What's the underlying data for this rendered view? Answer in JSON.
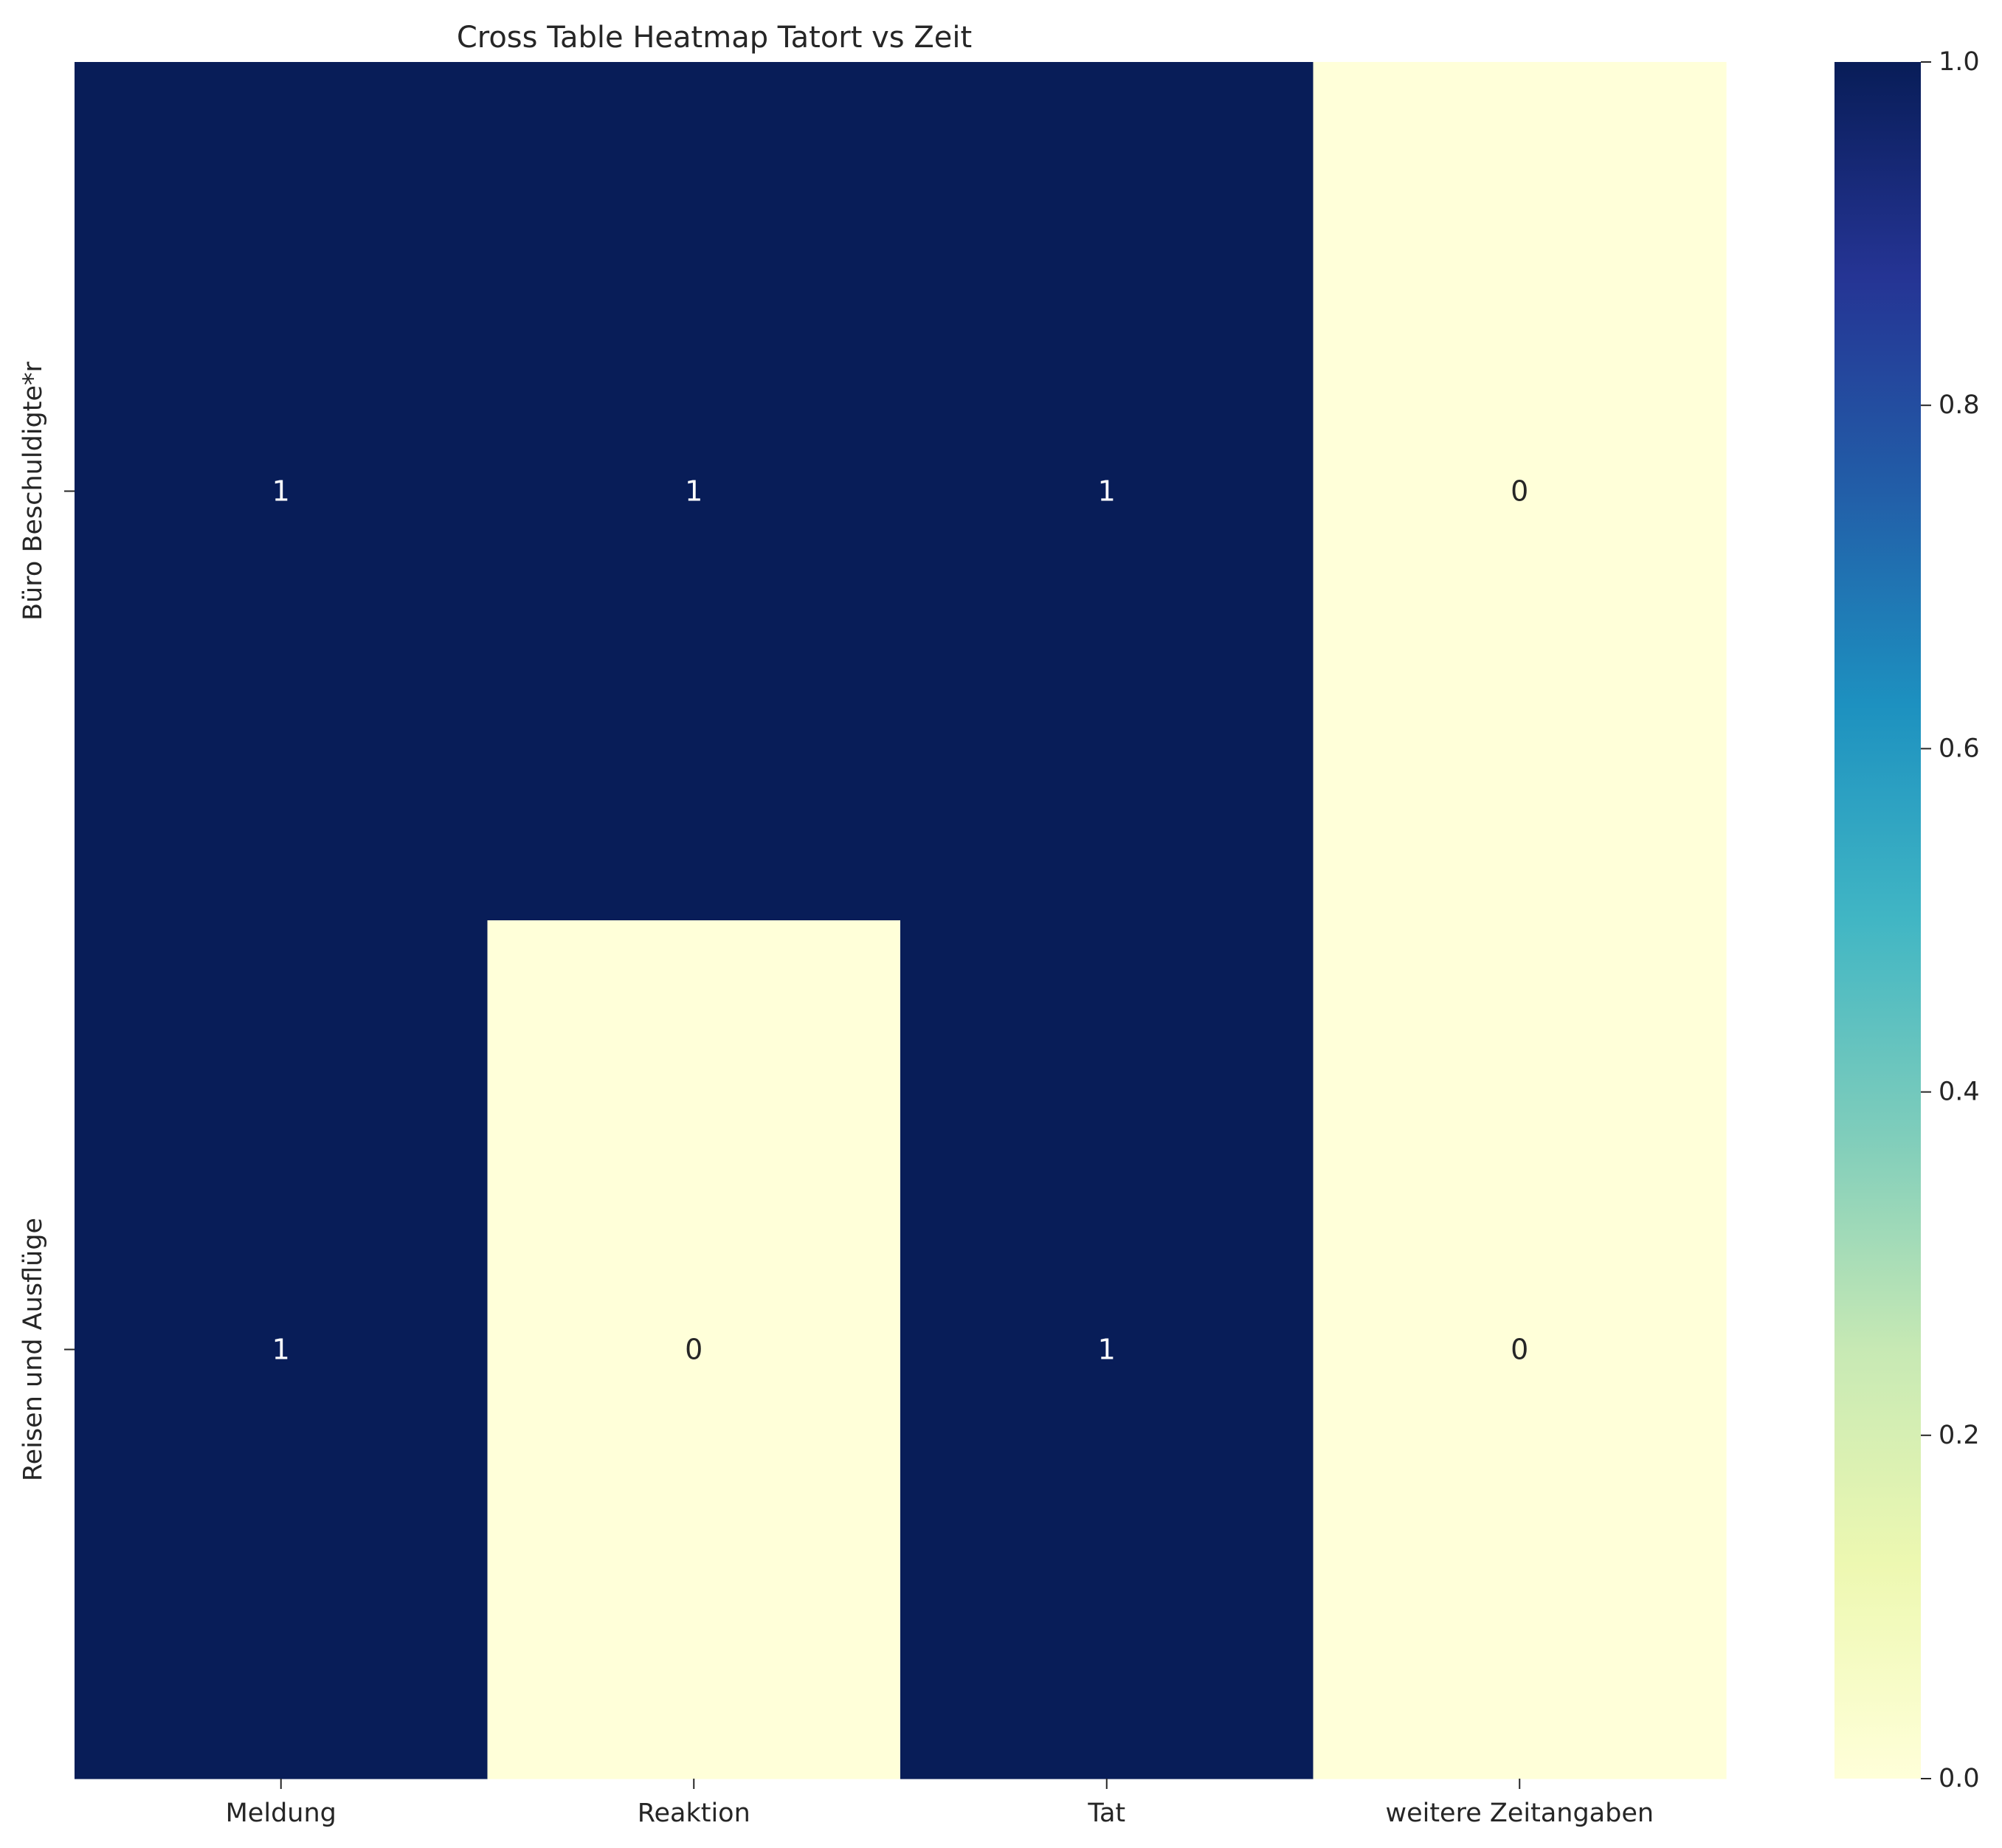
{
  "chart_data": {
    "type": "heatmap",
    "title": "Cross Table Heatmap Tatort vs Zeit",
    "xlabel": "",
    "ylabel": "",
    "x_categories": [
      "Meldung",
      "Reaktion",
      "Tat",
      "weitere Zeitangaben"
    ],
    "y_categories": [
      "Büro Beschuldigte*r",
      "Reisen und Ausflüge"
    ],
    "values": [
      [
        1,
        1,
        1,
        0
      ],
      [
        1,
        0,
        1,
        0
      ]
    ],
    "annotations": [
      [
        "1",
        "1",
        "1",
        "0"
      ],
      [
        "1",
        "0",
        "1",
        "0"
      ]
    ],
    "colorbar": {
      "range": [
        0,
        1
      ],
      "ticks": [
        0,
        0.2,
        0.4,
        0.6,
        0.8,
        1
      ],
      "tick_labels": [
        "0.0",
        "0.2",
        "0.4",
        "0.6",
        "0.8",
        "1.0"
      ],
      "colormap": "YlGnBu",
      "stops": [
        "#ffffd9",
        "#edf8b1",
        "#c7e9b4",
        "#7fcdbb",
        "#41b6c4",
        "#1d91c0",
        "#225ea8",
        "#253494",
        "#081d58"
      ]
    },
    "annotation_colors": {
      "on_dark": "#ffffff",
      "on_light": "#262626"
    },
    "grid": false,
    "legend": "colorbar-right"
  }
}
